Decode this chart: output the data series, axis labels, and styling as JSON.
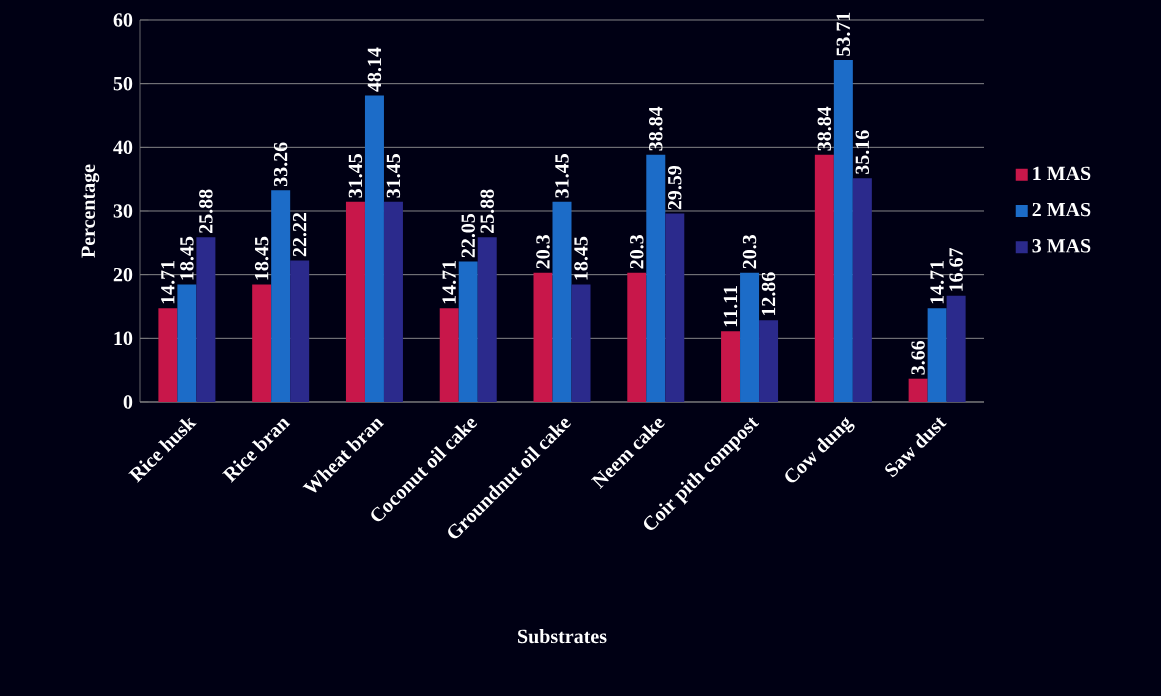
{
  "chart_data": {
    "type": "bar",
    "xlabel": "Substrates",
    "ylabel": "Percentage",
    "categories": [
      "Rice husk",
      "Rice bran",
      "Wheat bran",
      "Coconut oil cake",
      "Groundnut oil cake",
      "Neem cake",
      "Coir pith compost",
      "Cow dung",
      "Saw dust"
    ],
    "series": [
      {
        "name": "1 MAS",
        "color": "#c8174a",
        "values": [
          14.71,
          18.45,
          31.45,
          14.71,
          20.3,
          20.3,
          11.11,
          38.84,
          3.66
        ]
      },
      {
        "name": "2 MAS",
        "color": "#1c6cc8",
        "values": [
          18.45,
          33.26,
          48.14,
          22.05,
          31.45,
          38.84,
          20.3,
          53.71,
          14.71
        ]
      },
      {
        "name": "3 MAS",
        "color": "#2b2a8c",
        "values": [
          25.88,
          22.22,
          31.45,
          25.88,
          18.45,
          29.59,
          12.86,
          35.16,
          16.67
        ]
      }
    ],
    "ylim": [
      0,
      60
    ],
    "yticks": [
      0,
      10,
      20,
      30,
      40,
      50,
      60
    ],
    "grid": "y",
    "legend": "right",
    "data_labels": true
  }
}
